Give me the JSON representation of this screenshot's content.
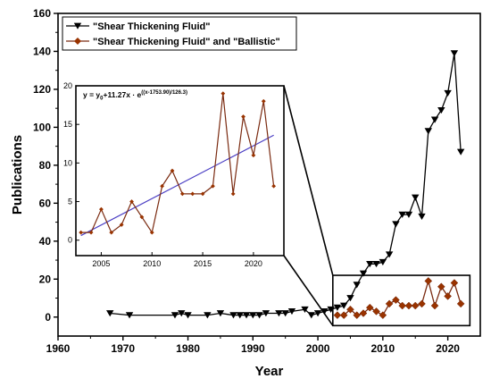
{
  "chart_data": [
    {
      "type": "line",
      "xlabel": "Year",
      "ylabel": "Publications",
      "xlim": [
        1960,
        2025
      ],
      "ylim": [
        -10,
        160
      ],
      "xticks": [
        1960,
        1970,
        1980,
        1990,
        2000,
        2010,
        2020
      ],
      "yticks": [
        0,
        20,
        40,
        60,
        80,
        100,
        120,
        140,
        160
      ],
      "legend_position": "top-left",
      "series": [
        {
          "name": "\"Shear Thickening Fluid\"",
          "color": "#000000",
          "marker": "triangle-down",
          "x": [
            1968,
            1971,
            1978,
            1979,
            1980,
            1983,
            1985,
            1987,
            1988,
            1989,
            1990,
            1991,
            1992,
            1994,
            1995,
            1996,
            1998,
            1999,
            2000,
            2001,
            2002,
            2003,
            2004,
            2005,
            2006,
            2007,
            2008,
            2009,
            2010,
            2011,
            2012,
            2013,
            2014,
            2015,
            2016,
            2017,
            2018,
            2019,
            2020,
            2021,
            2022
          ],
          "y": [
            2,
            1,
            1,
            2,
            1,
            1,
            2,
            1,
            1,
            1,
            1,
            1,
            2,
            2,
            2,
            3,
            4,
            1,
            2,
            3,
            4,
            5,
            6,
            10,
            17,
            23,
            28,
            28,
            29,
            33,
            49,
            54,
            54,
            63,
            53,
            98,
            104,
            109,
            118,
            139,
            87
          ]
        },
        {
          "name": "\"Shear Thickening Fluid\" and \"Ballistic\"",
          "color": "#993300",
          "line_color": "#7a2a10",
          "marker": "diamond",
          "x": [
            2003,
            2004,
            2005,
            2006,
            2007,
            2008,
            2009,
            2010,
            2011,
            2012,
            2013,
            2014,
            2015,
            2016,
            2017,
            2018,
            2019,
            2020,
            2021,
            2022
          ],
          "y": [
            1,
            1,
            4,
            1,
            2,
            5,
            3,
            1,
            7,
            9,
            6,
            6,
            6,
            7,
            19,
            6,
            16,
            11,
            18,
            7
          ]
        }
      ]
    },
    {
      "type": "line",
      "title": "",
      "fit_equation": "y = y",
      "fit_equation_sub": "0",
      "fit_equation_tail": "+11.27x · e",
      "fit_equation_exp": "((x-1753.90)/126.3)",
      "xlim": [
        2002.5,
        2023
      ],
      "ylim": [
        -2,
        20
      ],
      "xticks": [
        2005,
        2010,
        2015,
        2020
      ],
      "yticks": [
        0,
        5,
        10,
        15,
        20
      ],
      "series": [
        {
          "name": "\"Shear Thickening Fluid\" and \"Ballistic\"",
          "color": "#993300",
          "marker": "diamond",
          "x": [
            2003,
            2004,
            2005,
            2006,
            2007,
            2008,
            2009,
            2010,
            2011,
            2012,
            2013,
            2014,
            2015,
            2016,
            2017,
            2018,
            2019,
            2020,
            2021,
            2022
          ],
          "y": [
            1,
            1,
            4,
            1,
            2,
            5,
            3,
            1,
            7,
            9,
            6,
            6,
            6,
            7,
            19,
            6,
            16,
            11,
            18,
            7
          ]
        },
        {
          "type": "fit",
          "color": "#4b3fc4",
          "x": [
            2003,
            2022
          ],
          "y": [
            0.6,
            13.6
          ]
        }
      ]
    }
  ]
}
